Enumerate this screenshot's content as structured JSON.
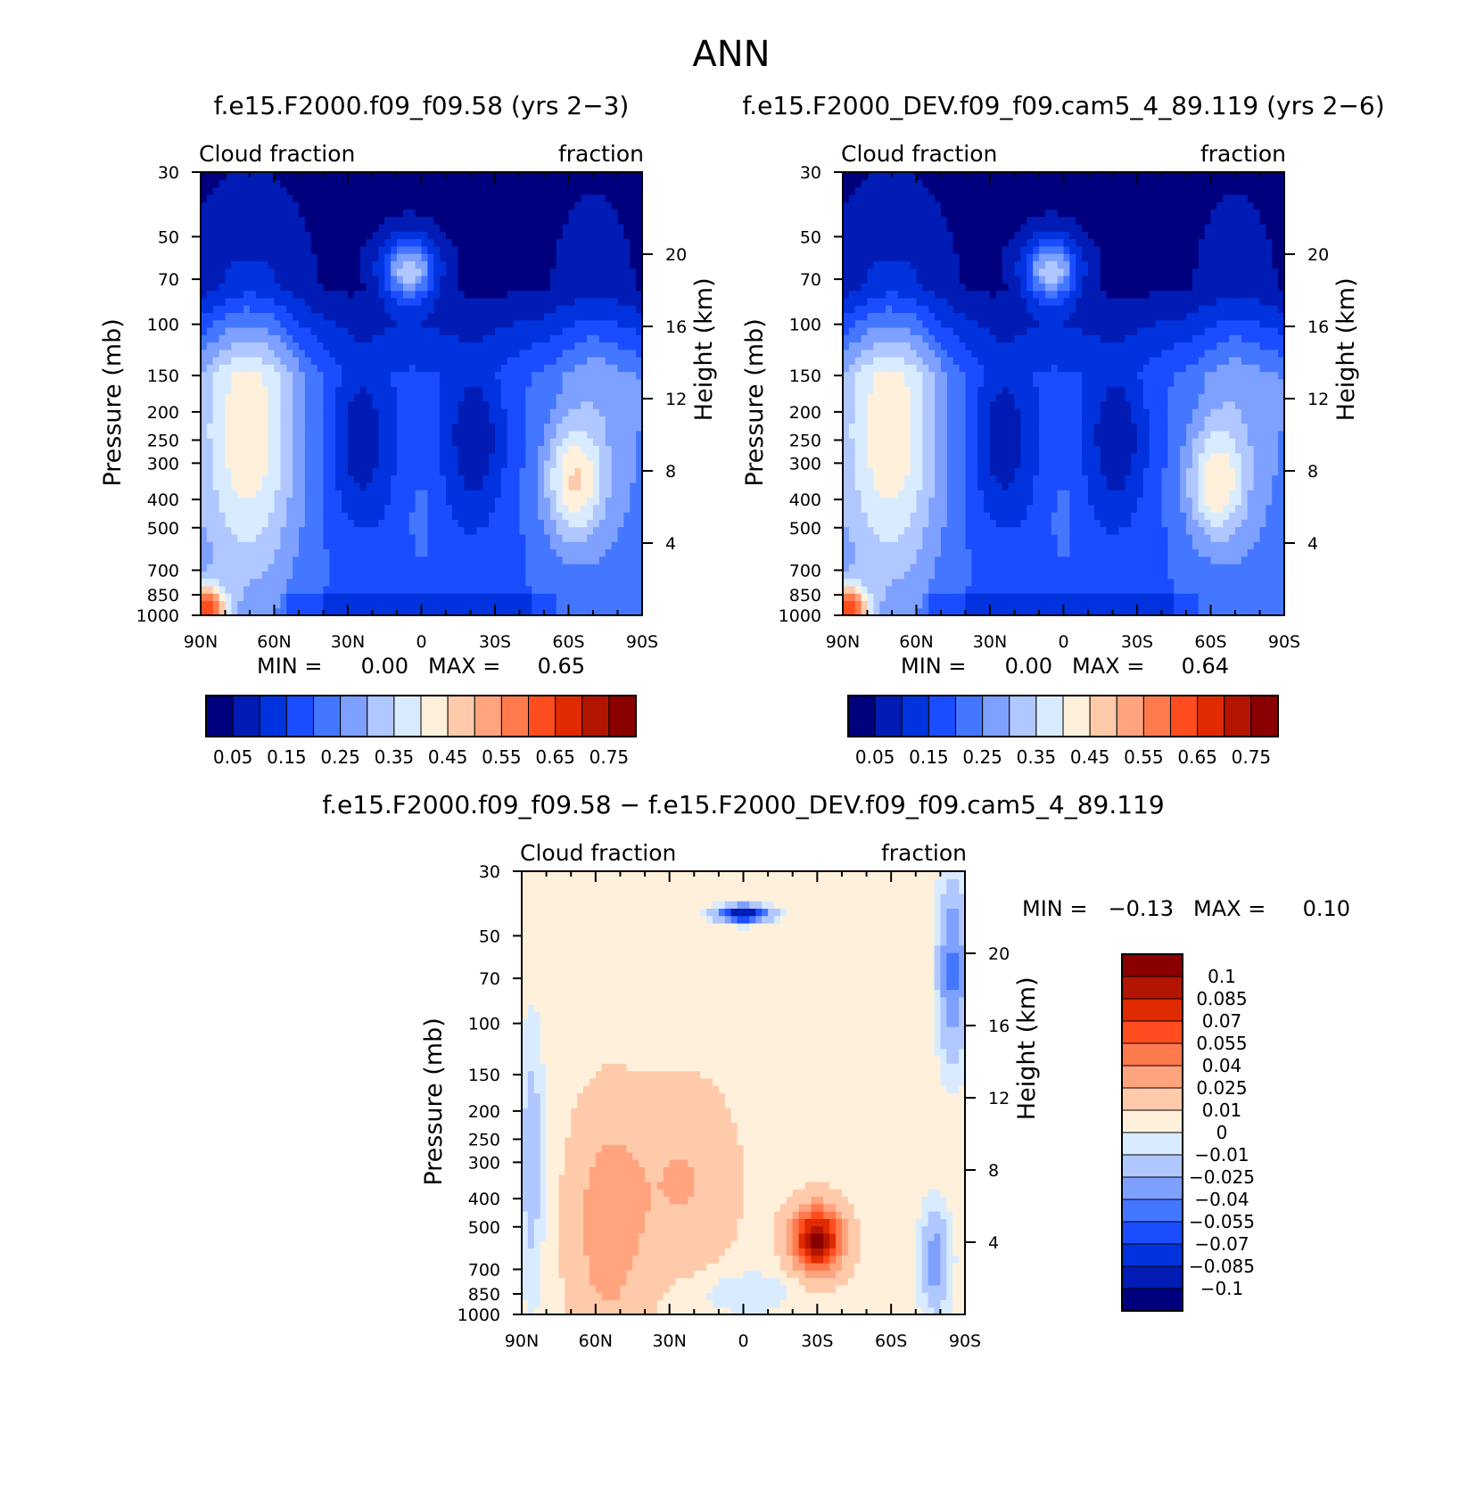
{
  "page_title": "ANN",
  "colors": {
    "field_levels": [
      0.05,
      0.1,
      0.15,
      0.2,
      0.25,
      0.3,
      0.35,
      0.4,
      0.45,
      0.5,
      0.55,
      0.6,
      0.65,
      0.7,
      0.75
    ],
    "field_palette": [
      "#00007f",
      "#001cb4",
      "#0033dd",
      "#1a4dff",
      "#4477ff",
      "#7ea0ff",
      "#b0c8ff",
      "#d9ecff",
      "#fff0dc",
      "#ffcaaa",
      "#ffa47f",
      "#ff7a4d",
      "#ff4d1f",
      "#e02a00",
      "#b41500",
      "#8a0000"
    ],
    "diff_palette": [
      "#00007f",
      "#001cb4",
      "#0033dd",
      "#1a4dff",
      "#4477ff",
      "#7ea0ff",
      "#b0c8ff",
      "#d9ecff",
      "#fff0dc",
      "#ffcaaa",
      "#ffa47f",
      "#ff7a4d",
      "#ff4d1f",
      "#e02a00",
      "#b41500",
      "#8a0000"
    ]
  },
  "chart_data": [
    {
      "type": "heatmap",
      "title": "f.e15.F2000.f09_f09.58 (yrs 2-3)",
      "left_label": "Cloud fraction",
      "right_label": "fraction",
      "ylabel": "Pressure (mb)",
      "y2label": "Height (km)",
      "x_ticks": [
        "90N",
        "60N",
        "30N",
        "0",
        "30S",
        "60S",
        "90S"
      ],
      "y_ticks": [
        "30",
        "50",
        "70",
        "100",
        "150",
        "200",
        "250",
        "300",
        "400",
        "500",
        "700",
        "850",
        "1000"
      ],
      "y2_ticks": [
        "20",
        "16",
        "12",
        "8",
        "4"
      ],
      "min_label": "MIN =",
      "min_value": "0.00",
      "max_label": "MAX =",
      "max_value": "0.65",
      "colorbar_labels": [
        "0.05",
        "0.15",
        "0.25",
        "0.35",
        "0.45",
        "0.55",
        "0.65",
        "0.75"
      ],
      "min": 0.0,
      "max": 0.65
    },
    {
      "type": "heatmap",
      "title": "f.e15.F2000_DEV.f09_f09.cam5_4_89.119 (yrs 2-6)",
      "left_label": "Cloud fraction",
      "right_label": "fraction",
      "ylabel": "Pressure (mb)",
      "y2label": "Height (km)",
      "x_ticks": [
        "90N",
        "60N",
        "30N",
        "0",
        "30S",
        "60S",
        "90S"
      ],
      "y_ticks": [
        "30",
        "50",
        "70",
        "100",
        "150",
        "200",
        "250",
        "300",
        "400",
        "500",
        "700",
        "850",
        "1000"
      ],
      "y2_ticks": [
        "20",
        "16",
        "12",
        "8",
        "4"
      ],
      "min_label": "MIN =",
      "min_value": "0.00",
      "max_label": "MAX =",
      "max_value": "0.64",
      "colorbar_labels": [
        "0.05",
        "0.15",
        "0.25",
        "0.35",
        "0.45",
        "0.55",
        "0.65",
        "0.75"
      ],
      "min": 0.0,
      "max": 0.64
    },
    {
      "type": "heatmap",
      "title": "f.e15.F2000.f09_f09.58 - f.e15.F2000_DEV.f09_f09.cam5_4_89.119",
      "left_label": "Cloud fraction",
      "right_label": "fraction",
      "ylabel": "Pressure (mb)",
      "y2label": "Height (km)",
      "x_ticks": [
        "90N",
        "60N",
        "30N",
        "0",
        "30S",
        "60S",
        "90S"
      ],
      "y_ticks": [
        "30",
        "50",
        "70",
        "100",
        "150",
        "200",
        "250",
        "300",
        "400",
        "500",
        "700",
        "850",
        "1000"
      ],
      "y2_ticks": [
        "20",
        "16",
        "12",
        "8",
        "4"
      ],
      "min_label": "MIN =",
      "min_value": "-0.13",
      "max_label": "MAX =",
      "max_value": "0.10",
      "colorbar_labels": [
        "0.1",
        "0.085",
        "0.07",
        "0.055",
        "0.04",
        "0.025",
        "0.01",
        "0",
        "-0.01",
        "-0.025",
        "-0.04",
        "-0.055",
        "-0.07",
        "-0.085",
        "-0.1"
      ],
      "min": -0.13,
      "max": 0.1
    }
  ]
}
